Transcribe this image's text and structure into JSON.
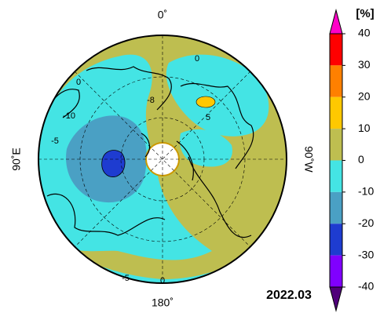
{
  "map": {
    "top_label": "0˚",
    "bottom_label": "180˚",
    "left_label": "90˚E",
    "right_label": "90˚W",
    "contour_labels": [
      "0",
      "-10",
      "-5",
      "-8",
      "0",
      "5",
      "-5",
      "0"
    ]
  },
  "colorbar": {
    "unit": "[%]",
    "ticks": [
      40,
      30,
      20,
      10,
      0,
      -10,
      -20,
      -30,
      -40
    ],
    "colors": [
      "#ff0000",
      "#ff8000",
      "#ffc800",
      "#bebe50",
      "#44e4e4",
      "#4aa0c4",
      "#1e3cd0",
      "#8000ff"
    ],
    "over_color": "#ff00c8",
    "under_color": "#50007a"
  },
  "date": "2022.03"
}
